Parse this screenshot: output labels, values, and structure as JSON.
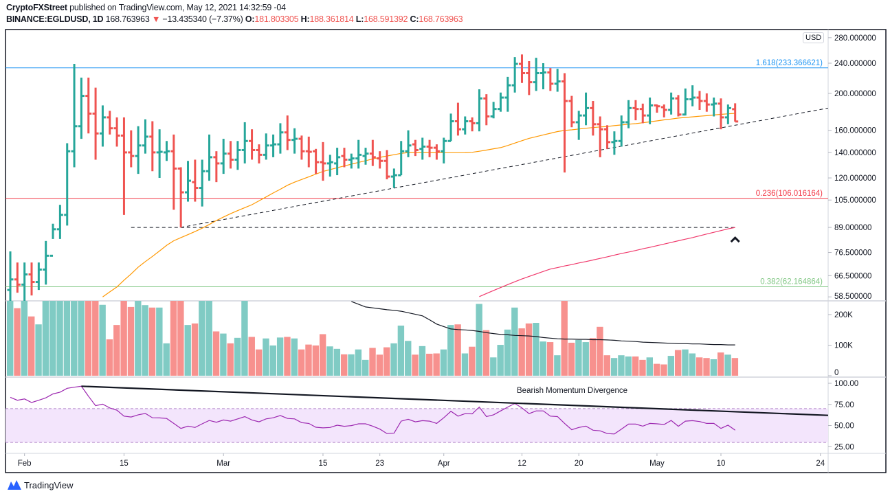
{
  "header": {
    "publisher": "CryptoFXStreet",
    "published_text": "published on TradingView.com, May 12, 2021 14:32:59 -04",
    "symbol": "BINANCE:EGLDUSD, 1D",
    "last": "168.763963",
    "change": "−13.435340 (−7.37%)",
    "o_label": "O:",
    "o": "181.803305",
    "h_label": "H:",
    "h": "188.361814",
    "l_label": "L:",
    "l": "168.591392",
    "c_label": "C:",
    "c": "168.763963",
    "direction_icon": "triangle-down-icon"
  },
  "currency_badge": "USD",
  "footer": {
    "logo_text": "TradingView"
  },
  "colors": {
    "up": "#26a69a",
    "down": "#ef5350",
    "vol_up": "#80cbc4",
    "vol_down": "#f7918e",
    "ma_fast": "#ff9800",
    "ma_slow": "#f0386b",
    "rsi": "#9c27b0",
    "rsi_band": "#f3e5fc",
    "fib_1618": "#2196f3",
    "fib_0236": "#f23645",
    "fib_0382": "#81c784"
  },
  "chart_data": {
    "type": "ohlc",
    "price_scale": "log",
    "price_axis_labels": [
      "280.000000",
      "240.000000",
      "200.000000",
      "160.000000",
      "140.000000",
      "120.000000",
      "105.000000",
      "89.000000",
      "76.500000",
      "66.500000",
      "58.500000"
    ],
    "price_axis_values": [
      280,
      240,
      200,
      160,
      140,
      120,
      105,
      89,
      76.5,
      66.5,
      58.5
    ],
    "x_axis_labels": [
      {
        "label": "Feb",
        "date": "2021-02-01"
      },
      {
        "label": "15",
        "date": "2021-02-15"
      },
      {
        "label": "Mar",
        "date": "2021-03-01"
      },
      {
        "label": "15",
        "date": "2021-03-15"
      },
      {
        "label": "23",
        "date": "2021-03-23"
      },
      {
        "label": "Apr",
        "date": "2021-04-01"
      },
      {
        "label": "12",
        "date": "2021-04-12"
      },
      {
        "label": "20",
        "date": "2021-04-20"
      },
      {
        "label": "May",
        "date": "2021-05-01"
      },
      {
        "label": "10",
        "date": "2021-05-10"
      },
      {
        "label": "24",
        "date": "2021-05-24"
      }
    ],
    "columns": [
      "date",
      "open",
      "high",
      "low",
      "close",
      "volume_k"
    ],
    "bars": [
      [
        "2021-01-30",
        61,
        77,
        56,
        65,
        250
      ],
      [
        "2021-01-31",
        65,
        72,
        60,
        63,
        221
      ],
      [
        "2021-02-01",
        63,
        72,
        56,
        67,
        250
      ],
      [
        "2021-02-02",
        67,
        72,
        59,
        64,
        194
      ],
      [
        "2021-02-03",
        64,
        72,
        61,
        69,
        168
      ],
      [
        "2021-02-04",
        69,
        82,
        63,
        75,
        250
      ],
      [
        "2021-02-05",
        75,
        91,
        83,
        88,
        250
      ],
      [
        "2021-02-06",
        88,
        102,
        83,
        96,
        250
      ],
      [
        "2021-02-07",
        96,
        148,
        90,
        141,
        250
      ],
      [
        "2021-02-08",
        141,
        239,
        128,
        164,
        250
      ],
      [
        "2021-02-09",
        164,
        220,
        152,
        197,
        250
      ],
      [
        "2021-02-10",
        197,
        220,
        157,
        177,
        250
      ],
      [
        "2021-02-11",
        177,
        207,
        134,
        157,
        250
      ],
      [
        "2021-02-12",
        157,
        186,
        145,
        173,
        232
      ],
      [
        "2021-02-13",
        173,
        180,
        156,
        162,
        119
      ],
      [
        "2021-02-14",
        162,
        173,
        145,
        155,
        166
      ],
      [
        "2021-02-15",
        155,
        173,
        96,
        140,
        250
      ],
      [
        "2021-02-16",
        140,
        160,
        128,
        137,
        225
      ],
      [
        "2021-02-17",
        137,
        164,
        123,
        146,
        250
      ],
      [
        "2021-02-18",
        146,
        171,
        139,
        154,
        231
      ],
      [
        "2021-02-19",
        154,
        169,
        125,
        140,
        223
      ],
      [
        "2021-02-20",
        140,
        161,
        120,
        140.5,
        223
      ],
      [
        "2021-02-21",
        140,
        150,
        133,
        141,
        106
      ],
      [
        "2021-02-22",
        141,
        156,
        99,
        127,
        250
      ],
      [
        "2021-02-23",
        127,
        128,
        89,
        110,
        250
      ],
      [
        "2021-02-24",
        110,
        133,
        104,
        118,
        166
      ],
      [
        "2021-02-25",
        117,
        134,
        104,
        113,
        171
      ],
      [
        "2021-02-26",
        113,
        134,
        101,
        125,
        250
      ],
      [
        "2021-02-27",
        125,
        156,
        118,
        136,
        250
      ],
      [
        "2021-02-28",
        136,
        141,
        117,
        131,
        145
      ],
      [
        "2021-03-01",
        131,
        152,
        123,
        139,
        138
      ],
      [
        "2021-03-02",
        139,
        150,
        127,
        134,
        106
      ],
      [
        "2021-03-03",
        134,
        150,
        126,
        142,
        124
      ],
      [
        "2021-03-04",
        142,
        168,
        131,
        150,
        250
      ],
      [
        "2021-03-05",
        150,
        161,
        134,
        142,
        127
      ],
      [
        "2021-03-06",
        142,
        147,
        131,
        138,
        86
      ],
      [
        "2021-03-07",
        138,
        157,
        134,
        146,
        122
      ],
      [
        "2021-03-08",
        146,
        156,
        136,
        147,
        99
      ],
      [
        "2021-03-09",
        147,
        167,
        139,
        158,
        125
      ],
      [
        "2021-03-10",
        158,
        175,
        142,
        151,
        127
      ],
      [
        "2021-03-11",
        151,
        162,
        139,
        152,
        122
      ],
      [
        "2021-03-12",
        152,
        155,
        134,
        141,
        86
      ],
      [
        "2021-03-13",
        141,
        154,
        128,
        140.5,
        102
      ],
      [
        "2021-03-14",
        141,
        143,
        123,
        132,
        99
      ],
      [
        "2021-03-15",
        132,
        149,
        118,
        131,
        136
      ],
      [
        "2021-03-16",
        131,
        138,
        121,
        132,
        96
      ],
      [
        "2021-03-17",
        131,
        144,
        122,
        136,
        88
      ],
      [
        "2021-03-18",
        137,
        144,
        128,
        134,
        70
      ],
      [
        "2021-03-19",
        134,
        139,
        127,
        135,
        70
      ],
      [
        "2021-03-20",
        135,
        151,
        127,
        138,
        86
      ],
      [
        "2021-03-21",
        137,
        144,
        130,
        139,
        52
      ],
      [
        "2021-03-22",
        139,
        151,
        129,
        136,
        91
      ],
      [
        "2021-03-23",
        135,
        141,
        127,
        133,
        69
      ],
      [
        "2021-03-24",
        133,
        142,
        119,
        121,
        93
      ],
      [
        "2021-03-25",
        121,
        127,
        113,
        122,
        106
      ],
      [
        "2021-03-26",
        122,
        150,
        122,
        141,
        164
      ],
      [
        "2021-03-27",
        141,
        160,
        136,
        146,
        114
      ],
      [
        "2021-03-28",
        147,
        151,
        137,
        142,
        69
      ],
      [
        "2021-03-29",
        143,
        153,
        134,
        145,
        97
      ],
      [
        "2021-03-30",
        145,
        151,
        136,
        144,
        72
      ],
      [
        "2021-03-31",
        144,
        147,
        134,
        141,
        73
      ],
      [
        "2021-04-01",
        141,
        153,
        131,
        150,
        86
      ],
      [
        "2021-04-02",
        150,
        177,
        150,
        169,
        166
      ],
      [
        "2021-04-03",
        169,
        189,
        155,
        161,
        168
      ],
      [
        "2021-04-04",
        161,
        174,
        156,
        169,
        73
      ],
      [
        "2021-04-05",
        169,
        173,
        159,
        167,
        95
      ],
      [
        "2021-04-06",
        167,
        205,
        159,
        194,
        235
      ],
      [
        "2021-04-07",
        194,
        199,
        165,
        174,
        149
      ],
      [
        "2021-04-08",
        174,
        190,
        172,
        182,
        60
      ],
      [
        "2021-04-09",
        182,
        201,
        179,
        195,
        101
      ],
      [
        "2021-04-10",
        195,
        221,
        179,
        210,
        151
      ],
      [
        "2021-04-11",
        210,
        249,
        201,
        239,
        223
      ],
      [
        "2021-04-12",
        239,
        253,
        213,
        226,
        155
      ],
      [
        "2021-04-13",
        226,
        243,
        198,
        214,
        171
      ],
      [
        "2021-04-14",
        214,
        248,
        203,
        226,
        173
      ],
      [
        "2021-04-15",
        226,
        240,
        205,
        227,
        112
      ],
      [
        "2021-04-16",
        227,
        233,
        203,
        212,
        110
      ],
      [
        "2021-04-17",
        212,
        232,
        202,
        215,
        67
      ],
      [
        "2021-04-18",
        215,
        226,
        124,
        191,
        250
      ],
      [
        "2021-04-19",
        191,
        197,
        163,
        168,
        108
      ],
      [
        "2021-04-20",
        168,
        180,
        151,
        175,
        117
      ],
      [
        "2021-04-21",
        175,
        201,
        165,
        183,
        110
      ],
      [
        "2021-04-22",
        183,
        191,
        155,
        166,
        123
      ],
      [
        "2021-04-23",
        166,
        174,
        136,
        161,
        160
      ],
      [
        "2021-04-24",
        161,
        165,
        143,
        149,
        67
      ],
      [
        "2021-04-25",
        149,
        159,
        138,
        150,
        58
      ],
      [
        "2021-04-26",
        150,
        175,
        145,
        168,
        67
      ],
      [
        "2021-04-27",
        168,
        192,
        162,
        183,
        63
      ],
      [
        "2021-04-28",
        183,
        192,
        170,
        182,
        63
      ],
      [
        "2021-04-29",
        182,
        188,
        167,
        175,
        52
      ],
      [
        "2021-04-30",
        175,
        195,
        166,
        186,
        60
      ],
      [
        "2021-05-01",
        186,
        187,
        178,
        185,
        39
      ],
      [
        "2021-05-02",
        184,
        187,
        173,
        181,
        37
      ],
      [
        "2021-05-03",
        181,
        201,
        176,
        194,
        65
      ],
      [
        "2021-05-04",
        194,
        198,
        174,
        176,
        84
      ],
      [
        "2021-05-05",
        176,
        206,
        175,
        193,
        86
      ],
      [
        "2021-05-06",
        193,
        210,
        185,
        195,
        73
      ],
      [
        "2021-05-07",
        195,
        203,
        181,
        191,
        60
      ],
      [
        "2021-05-08",
        191,
        200,
        179,
        187,
        58
      ],
      [
        "2021-05-09",
        187,
        195,
        174,
        188,
        54
      ],
      [
        "2021-05-10",
        188,
        194,
        161,
        173,
        76
      ],
      [
        "2021-05-11",
        173,
        187,
        166,
        183,
        69
      ],
      [
        "2021-05-12",
        181.803305,
        188.361814,
        168.591392,
        168.763963,
        58
      ]
    ],
    "ma_fast": {
      "first_date": "2021-02-12",
      "values": [
        58.5,
        60.3,
        62.1,
        64.7,
        67.2,
        70.0,
        72.4,
        74.7,
        77.2,
        79.9,
        82.1,
        83.7,
        85.2,
        86.8,
        88.6,
        90.6,
        92.8,
        94.8,
        96.7,
        98.5,
        100.3,
        102.1,
        104.5,
        107.0,
        109.6,
        112.1,
        114.8,
        117.0,
        118.9,
        120.8,
        122.8,
        124.8,
        126.2,
        127.6,
        129.0,
        130.4,
        131.8,
        133.2,
        134.6,
        135.9,
        137.0,
        138.1,
        139.2,
        139.9,
        140.0,
        140.0,
        139.9,
        139.9,
        139.8,
        139.8,
        139.8,
        139.9,
        140.1,
        141.0,
        142.0,
        143.1,
        144.1,
        146.0,
        148.1,
        150.3,
        152.4,
        154.0,
        155.6,
        157.2,
        158.8,
        159.9,
        160.5,
        161.3,
        162.0,
        162.7,
        163.3,
        163.8,
        164.6,
        165.3,
        166.0,
        166.6,
        167.5,
        168.4,
        169.4,
        170.4,
        171.3,
        172.3,
        172.9,
        173.6,
        174.2,
        174.8,
        175.5,
        176.2,
        176.8,
        177.3
      ]
    },
    "ma_slow": {
      "first_date": "2021-04-06",
      "values": [
        58.6,
        59.7,
        60.8,
        61.9,
        63.0,
        64.1,
        65.2,
        66.2,
        67.2,
        68.2,
        69.2,
        69.8,
        70.5,
        71.1,
        71.8,
        72.4,
        73.1,
        73.8,
        74.5,
        75.3,
        76.0,
        76.7,
        77.4,
        78.2,
        78.9,
        79.7,
        80.5,
        81.3,
        82.1,
        82.9,
        83.7,
        84.6,
        85.5,
        86.4,
        87.3,
        88.2,
        89.0
      ]
    },
    "fib_levels": [
      {
        "label": "1.618(233.366621)",
        "value": 233.366621,
        "color_key": "fib_1618"
      },
      {
        "label": "0.236(106.016164)",
        "value": 106.016164,
        "color_key": "fib_0236"
      },
      {
        "label": "0.382(62.164864)",
        "value": 62.164864,
        "color_key": "fib_0382"
      }
    ],
    "support_trendline": {
      "from": [
        "2021-02-23",
        89
      ],
      "to": [
        "2021-05-12",
        165
      ],
      "extend": "right",
      "style": "dashed"
    },
    "horizontal_line": {
      "value": 89,
      "from": "2021-02-16",
      "to": "2021-05-12",
      "style": "dashed"
    },
    "volume": {
      "axis_labels": [
        "200K",
        "100K",
        "0"
      ],
      "axis_values": [
        200,
        100,
        0
      ],
      "ma": {
        "first_date": "2021-03-19",
        "values": [
          243,
          234,
          225,
          222,
          219,
          216,
          214,
          211,
          206,
          201,
          196,
          183,
          169,
          161,
          153,
          151,
          150,
          148,
          145,
          141,
          138,
          135,
          134,
          132,
          131,
          130,
          128,
          125,
          123,
          121,
          120,
          120,
          119,
          119,
          118,
          118,
          117,
          116,
          114,
          113,
          112,
          110,
          109,
          108,
          107,
          106,
          105,
          105,
          104,
          104,
          103,
          102,
          102,
          101,
          101
        ]
      }
    },
    "rsi": {
      "axis_labels": [
        "100.00",
        "75.00",
        "50.00",
        "25.00"
      ],
      "axis_values": [
        100,
        75,
        50,
        25
      ],
      "band": [
        30,
        70
      ],
      "values": [
        83.4,
        79.9,
        81.5,
        77.2,
        79.9,
        82.8,
        87.4,
        89.5,
        94.1,
        95.4,
        96.5,
        84.7,
        73.5,
        75.3,
        70.8,
        68.1,
        61.1,
        60.1,
        62.7,
        64.3,
        59.2,
        59.0,
        58.4,
        52.5,
        46.6,
        49.3,
        47.7,
        52.0,
        56.0,
        53.9,
        56.6,
        55.2,
        57.9,
        60.6,
        56.6,
        54.4,
        57.9,
        59.2,
        61.9,
        58.4,
        57.9,
        53.4,
        52.5,
        48.0,
        47.2,
        47.7,
        50.4,
        49.1,
        49.9,
        52.0,
        52.0,
        49.3,
        45.8,
        40.5,
        41.0,
        55.2,
        57.4,
        54.4,
        55.8,
        55.2,
        52.5,
        59.2,
        66.8,
        61.1,
        64.1,
        63.8,
        71.9,
        60.6,
        62.7,
        67.3,
        71.9,
        76.1,
        70.8,
        64.1,
        67.3,
        67.3,
        61.1,
        60.6,
        52.5,
        45.0,
        47.7,
        49.3,
        44.5,
        43.7,
        40.5,
        40.0,
        45.8,
        51.7,
        51.7,
        49.3,
        52.5,
        52.0,
        51.2,
        56.0,
        49.1,
        55.2,
        55.8,
        54.7,
        52.5,
        52.5,
        46.6,
        50.4,
        44.5
      ],
      "divergence_line": {
        "from": [
          "2021-02-09",
          96.5
        ],
        "to": [
          "2021-04-11",
          76.5
        ],
        "extend": "right"
      },
      "annotation": "Bearish Momentum Divergence"
    },
    "marker": {
      "icon": "caret-up-icon",
      "date": "2021-05-12",
      "below_value": 89
    }
  }
}
